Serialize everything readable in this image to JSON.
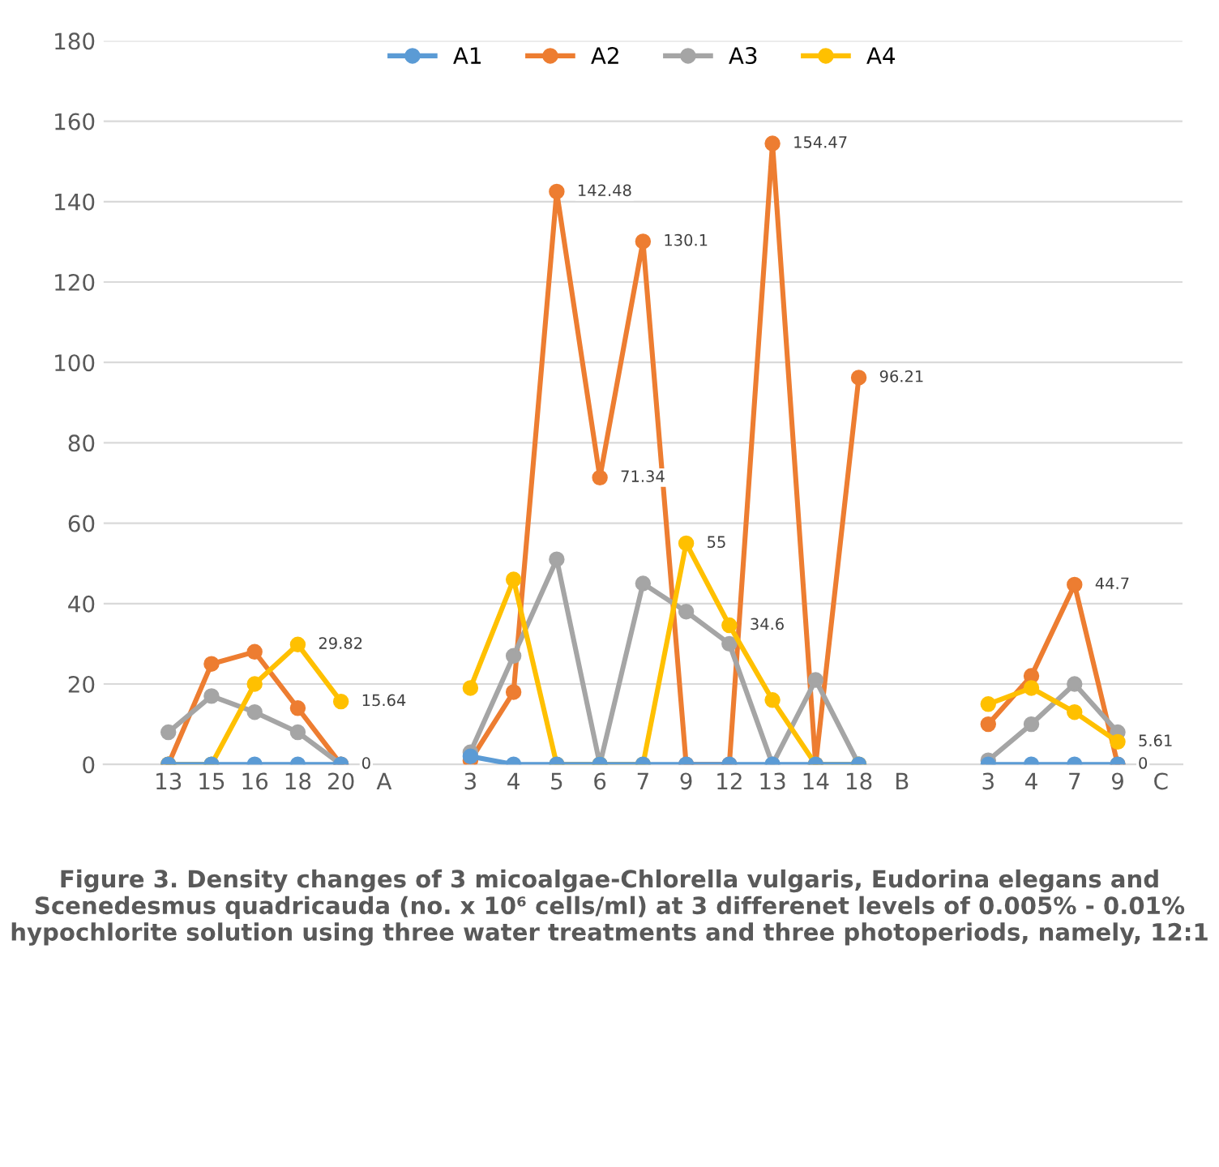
{
  "chart_data": {
    "type": "line",
    "categories": [
      null,
      "13",
      "15",
      "16",
      "18",
      "20",
      "A",
      null,
      "3",
      "4",
      "5",
      "6",
      "7",
      "9",
      "12",
      "13",
      "14",
      "18",
      "B",
      null,
      "3",
      "4",
      "7",
      "9",
      "C"
    ],
    "series": [
      {
        "name": "A1",
        "color": "#5b9bd5",
        "values": [
          null,
          0,
          0,
          0,
          0,
          0,
          null,
          null,
          2,
          0,
          0,
          0,
          0,
          0,
          0,
          0,
          0,
          0,
          null,
          null,
          0,
          0,
          0,
          0,
          null
        ]
      },
      {
        "name": "A2",
        "color": "#ed7d31",
        "values": [
          null,
          0,
          25,
          28,
          14,
          0,
          null,
          null,
          1,
          18,
          142.48,
          71.34,
          130.1,
          0,
          0,
          154.47,
          0,
          96.21,
          null,
          null,
          10,
          22,
          44.7,
          0,
          null
        ],
        "value_labels": [
          null,
          null,
          null,
          null,
          null,
          null,
          null,
          null,
          null,
          null,
          "142.48",
          "71.34",
          "130.1",
          null,
          null,
          "154.47",
          null,
          "96.21",
          null,
          null,
          null,
          null,
          "44.7",
          "0",
          null
        ]
      },
      {
        "name": "A3",
        "color": "#a5a5a5",
        "values": [
          null,
          8,
          17,
          13,
          8,
          0,
          null,
          null,
          3,
          27,
          51,
          0,
          45,
          38,
          30,
          0,
          21,
          0,
          null,
          null,
          1,
          10,
          20,
          8,
          null
        ],
        "value_labels": [
          null,
          null,
          null,
          null,
          null,
          "0",
          null,
          null,
          null,
          null,
          null,
          null,
          null,
          null,
          null,
          null,
          null,
          null,
          null,
          null,
          null,
          null,
          null,
          null,
          null
        ]
      },
      {
        "name": "A4",
        "color": "#ffc000",
        "values": [
          null,
          0,
          0,
          20,
          29.82,
          15.64,
          null,
          null,
          19,
          46,
          0,
          0,
          0,
          55,
          34.6,
          16,
          0,
          0,
          null,
          null,
          15,
          19,
          13,
          5.61,
          null
        ],
        "value_labels": [
          null,
          null,
          null,
          null,
          "29.82",
          "15.64",
          null,
          null,
          null,
          null,
          null,
          null,
          null,
          "55",
          "34.6",
          null,
          null,
          null,
          null,
          null,
          null,
          null,
          null,
          "5.61",
          null
        ]
      }
    ],
    "ylim": [
      0,
      180
    ],
    "yticks": [
      0,
      20,
      40,
      60,
      80,
      100,
      120,
      140,
      160,
      180
    ],
    "grid": "y",
    "legend": "top",
    "marker": "circle",
    "line_style": "solid",
    "annotations": [
      "Figure 3. Density changes of 3 micoalgae-Chlorella vulgaris, Eudorina elegans and Scenedesmus quadricauda (no. x 10⁶ cells/ml) at 3 differenet levels of 0.005% - 0.01% hypochlorite solution using three water treatments and three photoperiods, namely, 12:1"
    ]
  }
}
